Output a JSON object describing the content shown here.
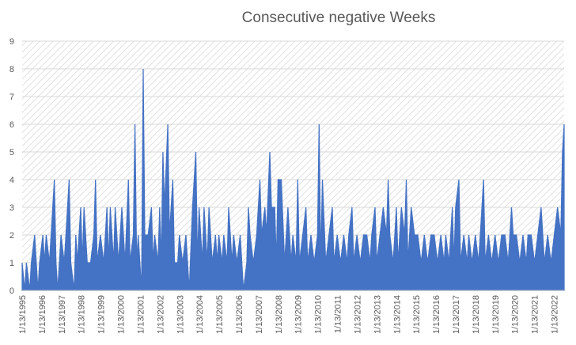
{
  "chart_data": {
    "type": "area",
    "title": "Consecutive negative Weeks",
    "xlabel": "",
    "ylabel": "",
    "ylim": [
      0,
      9
    ],
    "yticks": [
      0,
      1,
      2,
      3,
      4,
      5,
      6,
      7,
      8,
      9
    ],
    "grid": true,
    "legend": "none",
    "x_tick_labels": [
      "1/13/1995",
      "1/13/1996",
      "1/13/1997",
      "1/13/1998",
      "1/13/1999",
      "1/13/2000",
      "1/13/2001",
      "1/13/2002",
      "1/13/2003",
      "1/13/2004",
      "1/13/2005",
      "1/13/2006",
      "1/13/2007",
      "1/13/2008",
      "1/13/2009",
      "1/13/2010",
      "1/13/2011",
      "1/13/2012",
      "1/13/2013",
      "1/13/2014",
      "1/13/2015",
      "1/13/2016",
      "1/13/2017",
      "1/13/2018",
      "1/13/2019",
      "1/13/2020",
      "1/13/2021",
      "1/13/2022"
    ],
    "x_start": "1/13/1995",
    "x_end": "2022-07",
    "series": [
      {
        "color": "#4472c4",
        "points": [
          [
            "1995-01-13",
            1
          ],
          [
            "1995-03",
            0
          ],
          [
            "1995-04",
            1
          ],
          [
            "1995-06",
            0
          ],
          [
            "1995-07",
            1
          ],
          [
            "1995-09",
            2
          ],
          [
            "1995-10",
            1
          ],
          [
            "1995-11",
            0
          ],
          [
            "1995-12",
            1
          ],
          [
            "1996-02",
            2
          ],
          [
            "1996-03",
            1
          ],
          [
            "1996-04",
            2
          ],
          [
            "1996-06",
            1
          ],
          [
            "1996-07",
            2
          ],
          [
            "1996-09",
            4
          ],
          [
            "1996-10",
            1
          ],
          [
            "1996-11",
            0
          ],
          [
            "1997-01",
            2
          ],
          [
            "1997-03",
            1
          ],
          [
            "1997-04",
            2
          ],
          [
            "1997-06",
            4
          ],
          [
            "1997-07",
            1
          ],
          [
            "1997-09",
            0
          ],
          [
            "1997-10",
            2
          ],
          [
            "1997-11",
            1
          ],
          [
            "1998-01",
            3
          ],
          [
            "1998-02",
            1
          ],
          [
            "1998-03",
            3
          ],
          [
            "1998-05",
            1
          ],
          [
            "1998-07",
            1
          ],
          [
            "1998-09",
            2
          ],
          [
            "1998-10",
            4
          ],
          [
            "1998-11",
            1
          ],
          [
            "1999-01",
            2
          ],
          [
            "1999-03",
            1
          ],
          [
            "1999-05",
            3
          ],
          [
            "1999-06",
            1
          ],
          [
            "1999-07",
            3
          ],
          [
            "1999-09",
            1
          ],
          [
            "1999-10",
            3
          ],
          [
            "1999-12",
            1
          ],
          [
            "2000-02",
            3
          ],
          [
            "2000-04",
            1
          ],
          [
            "2000-06",
            4
          ],
          [
            "2000-07",
            1
          ],
          [
            "2000-09",
            2
          ],
          [
            "2000-10",
            6
          ],
          [
            "2000-11",
            1
          ],
          [
            "2000-12",
            2
          ],
          [
            "2001-02",
            0
          ],
          [
            "2001-03",
            8
          ],
          [
            "2001-04",
            2
          ],
          [
            "2001-06",
            2
          ],
          [
            "2001-08",
            3
          ],
          [
            "2001-09",
            1
          ],
          [
            "2001-10",
            2
          ],
          [
            "2001-12",
            1
          ],
          [
            "2002-01",
            3
          ],
          [
            "2002-02",
            1
          ],
          [
            "2002-03",
            5
          ],
          [
            "2002-04",
            3
          ],
          [
            "2002-06",
            6
          ],
          [
            "2002-07",
            2
          ],
          [
            "2002-09",
            4
          ],
          [
            "2002-10",
            1
          ],
          [
            "2002-12",
            1
          ],
          [
            "2003-01",
            2
          ],
          [
            "2003-03",
            1
          ],
          [
            "2003-05",
            2
          ],
          [
            "2003-07",
            0
          ],
          [
            "2003-09",
            3
          ],
          [
            "2003-10",
            4
          ],
          [
            "2003-11",
            5
          ],
          [
            "2003-12",
            1
          ],
          [
            "2004-01",
            3
          ],
          [
            "2004-03",
            1
          ],
          [
            "2004-04",
            3
          ],
          [
            "2004-06",
            1
          ],
          [
            "2004-07",
            3
          ],
          [
            "2004-09",
            1
          ],
          [
            "2004-11",
            2
          ],
          [
            "2004-12",
            1
          ],
          [
            "2005-01",
            2
          ],
          [
            "2005-03",
            1
          ],
          [
            "2005-04",
            2
          ],
          [
            "2005-06",
            1
          ],
          [
            "2005-07",
            3
          ],
          [
            "2005-09",
            1
          ],
          [
            "2005-10",
            2
          ],
          [
            "2005-12",
            1
          ],
          [
            "2006-02",
            2
          ],
          [
            "2006-04",
            0
          ],
          [
            "2006-06",
            1
          ],
          [
            "2006-07",
            3
          ],
          [
            "2006-08",
            2
          ],
          [
            "2006-10",
            1
          ],
          [
            "2006-12",
            2
          ],
          [
            "2007-02",
            4
          ],
          [
            "2007-03",
            2
          ],
          [
            "2007-05",
            3
          ],
          [
            "2007-06",
            2
          ],
          [
            "2007-08",
            5
          ],
          [
            "2007-09",
            3
          ],
          [
            "2007-11",
            3
          ],
          [
            "2007-12",
            1
          ],
          [
            "2008-01",
            4
          ],
          [
            "2008-03",
            4
          ],
          [
            "2008-05",
            1
          ],
          [
            "2008-07",
            3
          ],
          [
            "2008-09",
            1
          ],
          [
            "2008-10",
            2
          ],
          [
            "2008-12",
            1
          ],
          [
            "2009-01",
            4
          ],
          [
            "2009-02",
            1
          ],
          [
            "2009-04",
            2
          ],
          [
            "2009-06",
            3
          ],
          [
            "2009-07",
            1
          ],
          [
            "2009-09",
            2
          ],
          [
            "2009-11",
            1
          ],
          [
            "2010-01",
            2
          ],
          [
            "2010-02",
            6
          ],
          [
            "2010-03",
            1
          ],
          [
            "2010-04",
            4
          ],
          [
            "2010-06",
            1
          ],
          [
            "2010-08",
            2
          ],
          [
            "2010-10",
            3
          ],
          [
            "2010-11",
            1
          ],
          [
            "2011-01",
            2
          ],
          [
            "2011-03",
            1
          ],
          [
            "2011-05",
            2
          ],
          [
            "2011-07",
            1
          ],
          [
            "2011-08",
            2
          ],
          [
            "2011-10",
            3
          ],
          [
            "2011-11",
            1
          ],
          [
            "2012-01",
            2
          ],
          [
            "2012-03",
            1
          ],
          [
            "2012-05",
            2
          ],
          [
            "2012-07",
            2
          ],
          [
            "2012-09",
            1
          ],
          [
            "2012-10",
            2
          ],
          [
            "2012-12",
            3
          ],
          [
            "2013-01",
            1
          ],
          [
            "2013-03",
            2
          ],
          [
            "2013-05",
            3
          ],
          [
            "2013-07",
            2
          ],
          [
            "2013-08",
            4
          ],
          [
            "2013-09",
            2
          ],
          [
            "2013-11",
            1
          ],
          [
            "2014-01",
            3
          ],
          [
            "2014-02",
            1
          ],
          [
            "2014-04",
            3
          ],
          [
            "2014-06",
            2
          ],
          [
            "2014-07",
            4
          ],
          [
            "2014-08",
            1
          ],
          [
            "2014-10",
            3
          ],
          [
            "2014-12",
            2
          ],
          [
            "2015-02",
            2
          ],
          [
            "2015-04",
            1
          ],
          [
            "2015-06",
            2
          ],
          [
            "2015-08",
            1
          ],
          [
            "2015-10",
            2
          ],
          [
            "2015-12",
            2
          ],
          [
            "2016-02",
            1
          ],
          [
            "2016-04",
            2
          ],
          [
            "2016-06",
            1
          ],
          [
            "2016-07",
            2
          ],
          [
            "2016-09",
            1
          ],
          [
            "2016-11",
            3
          ],
          [
            "2016-12",
            1
          ],
          [
            "2017-01",
            3
          ],
          [
            "2017-03",
            4
          ],
          [
            "2017-04",
            1
          ],
          [
            "2017-06",
            2
          ],
          [
            "2017-08",
            1
          ],
          [
            "2017-09",
            2
          ],
          [
            "2017-11",
            1
          ],
          [
            "2018-01",
            2
          ],
          [
            "2018-03",
            1
          ],
          [
            "2018-04",
            2
          ],
          [
            "2018-06",
            4
          ],
          [
            "2018-07",
            1
          ],
          [
            "2018-09",
            2
          ],
          [
            "2018-11",
            1
          ],
          [
            "2019-01",
            2
          ],
          [
            "2019-03",
            1
          ],
          [
            "2019-05",
            2
          ],
          [
            "2019-07",
            2
          ],
          [
            "2019-09",
            1
          ],
          [
            "2019-11",
            3
          ],
          [
            "2019-12",
            2
          ],
          [
            "2020-02",
            2
          ],
          [
            "2020-04",
            1
          ],
          [
            "2020-06",
            2
          ],
          [
            "2020-08",
            1
          ],
          [
            "2020-09",
            2
          ],
          [
            "2020-11",
            2
          ],
          [
            "2021-01",
            1
          ],
          [
            "2021-03",
            2
          ],
          [
            "2021-05",
            3
          ],
          [
            "2021-07",
            1
          ],
          [
            "2021-09",
            2
          ],
          [
            "2021-11",
            1
          ],
          [
            "2022-01",
            2
          ],
          [
            "2022-03",
            3
          ],
          [
            "2022-05",
            2
          ],
          [
            "2022-06",
            5
          ],
          [
            "2022-07",
            6
          ]
        ]
      }
    ]
  }
}
